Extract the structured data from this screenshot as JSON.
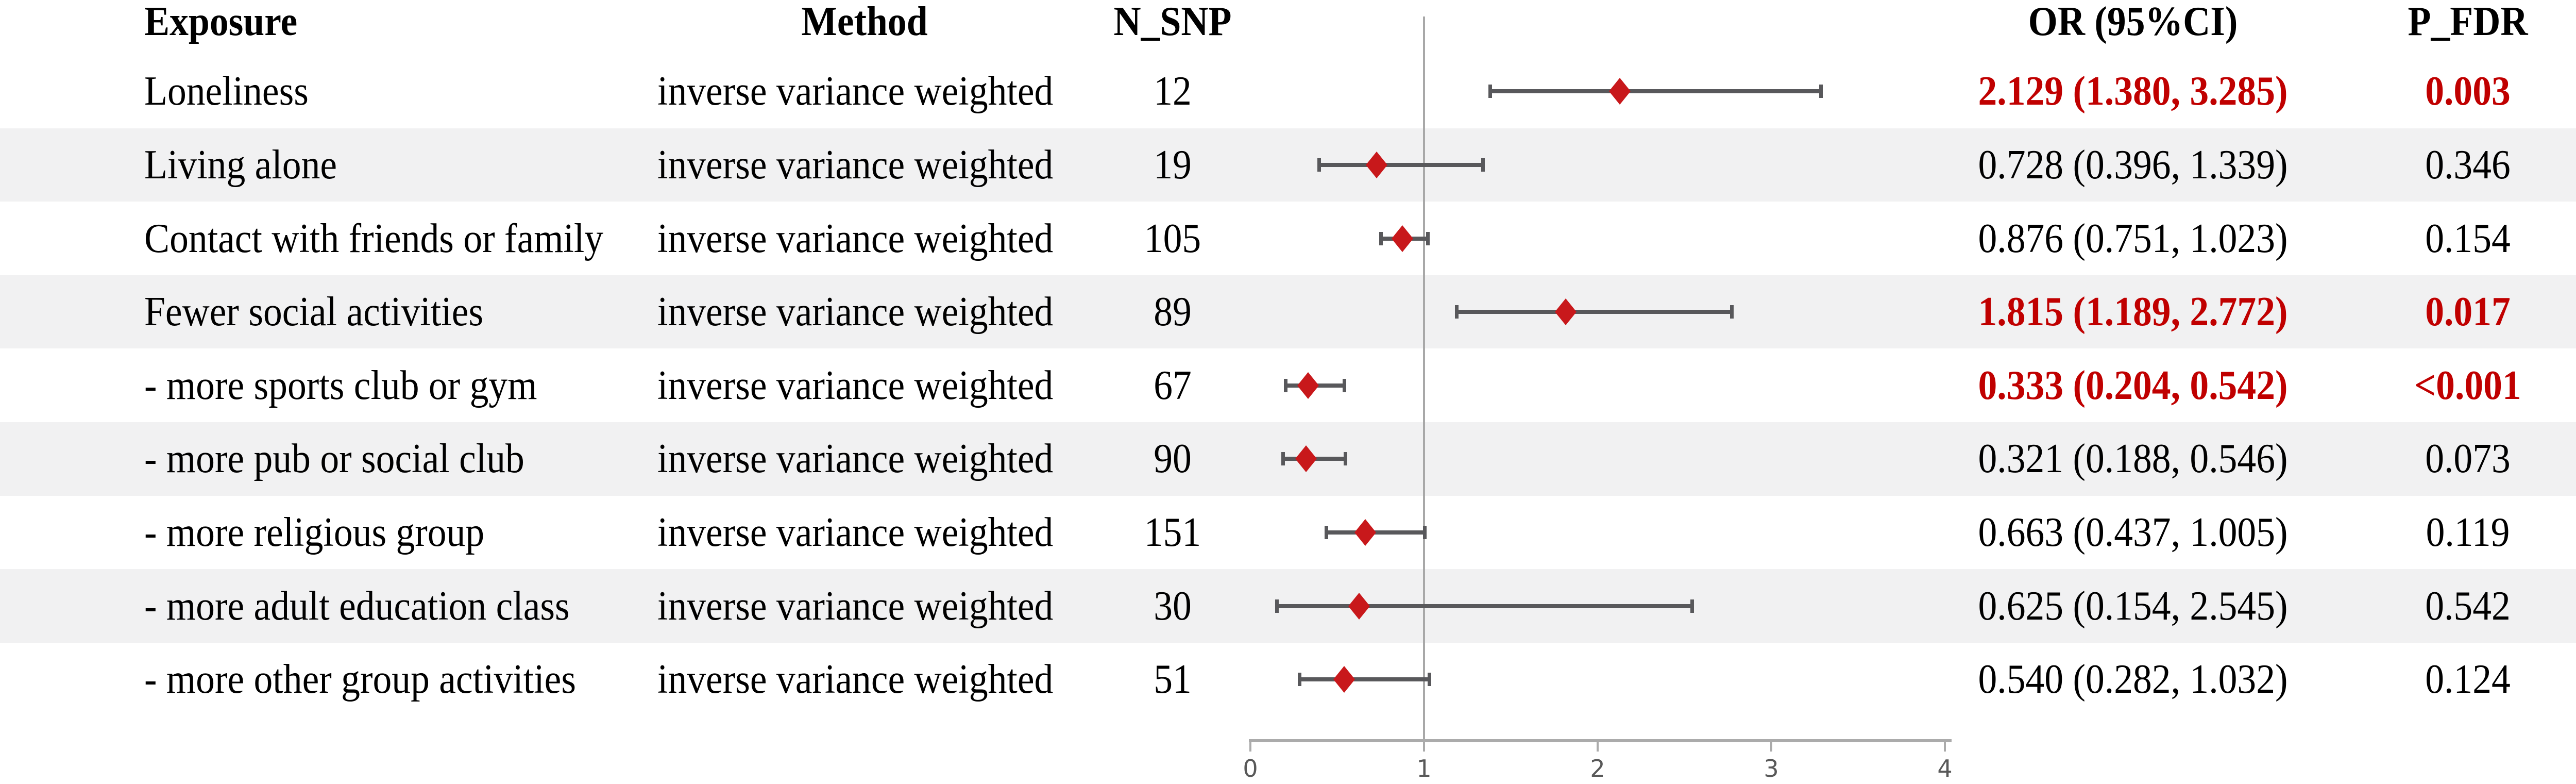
{
  "chart_data": {
    "type": "forest-plot-table",
    "columns": {
      "exposure": "Exposure",
      "method": "Method",
      "n_snp": "N_SNP",
      "or_ci": "OR (95%CI)",
      "p_fdr": "P_FDR"
    },
    "axis": {
      "min": 0,
      "max": 4,
      "ticks": [
        0,
        1,
        2,
        3,
        4
      ],
      "ref_line": 1
    },
    "rows": [
      {
        "exposure": "Loneliness",
        "method": "inverse variance weighted",
        "n_snp": "12",
        "or": 2.129,
        "ci_low": 1.38,
        "ci_high": 3.285,
        "or_ci": "2.129 (1.380, 3.285)",
        "p_fdr": "0.003",
        "significant": true
      },
      {
        "exposure": "Living alone",
        "method": "inverse variance weighted",
        "n_snp": "19",
        "or": 0.728,
        "ci_low": 0.396,
        "ci_high": 1.339,
        "or_ci": "0.728 (0.396, 1.339)",
        "p_fdr": "0.346",
        "significant": false
      },
      {
        "exposure": "Contact with friends or family",
        "method": "inverse variance weighted",
        "n_snp": "105",
        "or": 0.876,
        "ci_low": 0.751,
        "ci_high": 1.023,
        "or_ci": "0.876 (0.751, 1.023)",
        "p_fdr": "0.154",
        "significant": false
      },
      {
        "exposure": "Fewer social activities",
        "method": "inverse variance weighted",
        "n_snp": "89",
        "or": 1.815,
        "ci_low": 1.189,
        "ci_high": 2.772,
        "or_ci": "1.815 (1.189, 2.772)",
        "p_fdr": "0.017",
        "significant": true
      },
      {
        "exposure": "- more sports club or gym",
        "method": "inverse variance weighted",
        "n_snp": "67",
        "or": 0.333,
        "ci_low": 0.204,
        "ci_high": 0.542,
        "or_ci": "0.333 (0.204, 0.542)",
        "p_fdr": "<0.001",
        "significant": true
      },
      {
        "exposure": "- more pub or social club",
        "method": "inverse variance weighted",
        "n_snp": "90",
        "or": 0.321,
        "ci_low": 0.188,
        "ci_high": 0.546,
        "or_ci": "0.321 (0.188, 0.546)",
        "p_fdr": "0.073",
        "significant": false
      },
      {
        "exposure": "- more religious group",
        "method": "inverse variance weighted",
        "n_snp": "151",
        "or": 0.663,
        "ci_low": 0.437,
        "ci_high": 1.005,
        "or_ci": "0.663 (0.437, 1.005)",
        "p_fdr": "0.119",
        "significant": false
      },
      {
        "exposure": "- more adult education class",
        "method": "inverse variance weighted",
        "n_snp": "30",
        "or": 0.625,
        "ci_low": 0.154,
        "ci_high": 2.545,
        "or_ci": "0.625 (0.154, 2.545)",
        "p_fdr": "0.542",
        "significant": false
      },
      {
        "exposure": "- more other group activities",
        "method": "inverse variance weighted",
        "n_snp": "51",
        "or": 0.54,
        "ci_low": 0.282,
        "ci_high": 1.032,
        "or_ci": "0.540 (0.282, 1.032)",
        "p_fdr": "0.124",
        "significant": false
      }
    ],
    "legend_position": "none",
    "grid": false
  },
  "colors": {
    "significant_text": "#c00000",
    "normal_text": "#000000",
    "diamond": "#c8181b",
    "ci_bar": "#58585b",
    "axis": "#ababab",
    "ref_line": "#a8a8a8",
    "tick_label": "#595959",
    "stripe": "#f1f1f2",
    "background": "#ffffff"
  }
}
